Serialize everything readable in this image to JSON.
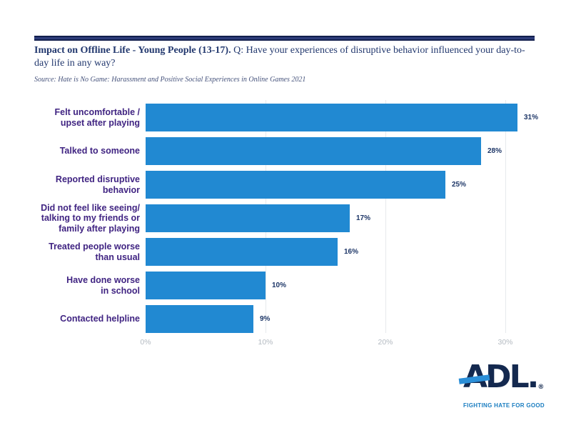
{
  "header": {
    "title_bold": "Impact on Offline Life - Young People (13-17).",
    "title_question": " Q: Have your experiences of disruptive behavior influenced your day-to-day life in any way?",
    "source": "Source: Hate is No Game: Harassment and Positive Social Experiences in Online Games 2021"
  },
  "chart_data": {
    "type": "bar",
    "orientation": "horizontal",
    "title": "Impact on Offline Life - Young People (13-17)",
    "categories": [
      "Felt uncomfortable /\nupset after playing",
      "Talked to someone",
      "Reported disruptive\nbehavior",
      "Did not feel like seeing/\ntalking to my friends or\nfamily after playing",
      "Treated people worse\nthan usual",
      "Have done worse\nin school",
      "Contacted helpline"
    ],
    "values": [
      31,
      28,
      25,
      17,
      16,
      10,
      9
    ],
    "value_labels": [
      "31%",
      "28%",
      "25%",
      "17%",
      "16%",
      "10%",
      "9%"
    ],
    "x_ticks": [
      {
        "value": 0,
        "label": "0%"
      },
      {
        "value": 10,
        "label": "10%"
      },
      {
        "value": 20,
        "label": "20%"
      },
      {
        "value": 30,
        "label": "30%"
      }
    ],
    "xlim": [
      0,
      33
    ],
    "xlabel": "",
    "ylabel": "",
    "grid": "vertical-at-10-20-30",
    "legend": "none",
    "bar_color": "#2189d2"
  },
  "logo": {
    "wordmark": "ADL.",
    "registered": "®",
    "tagline": "FIGHTING HATE FOR GOOD"
  },
  "colors": {
    "top_rule": "#1b2a5e",
    "title_text": "#22386e",
    "category_label": "#402482",
    "value_label": "#1d3667",
    "bar": "#2189d2",
    "gridline": "#e7e9ec",
    "tick_label": "#b3bac1",
    "logo_navy": "#14294f",
    "logo_blue": "#1a7dc0",
    "stripe_blue": "#2b8fd8"
  }
}
